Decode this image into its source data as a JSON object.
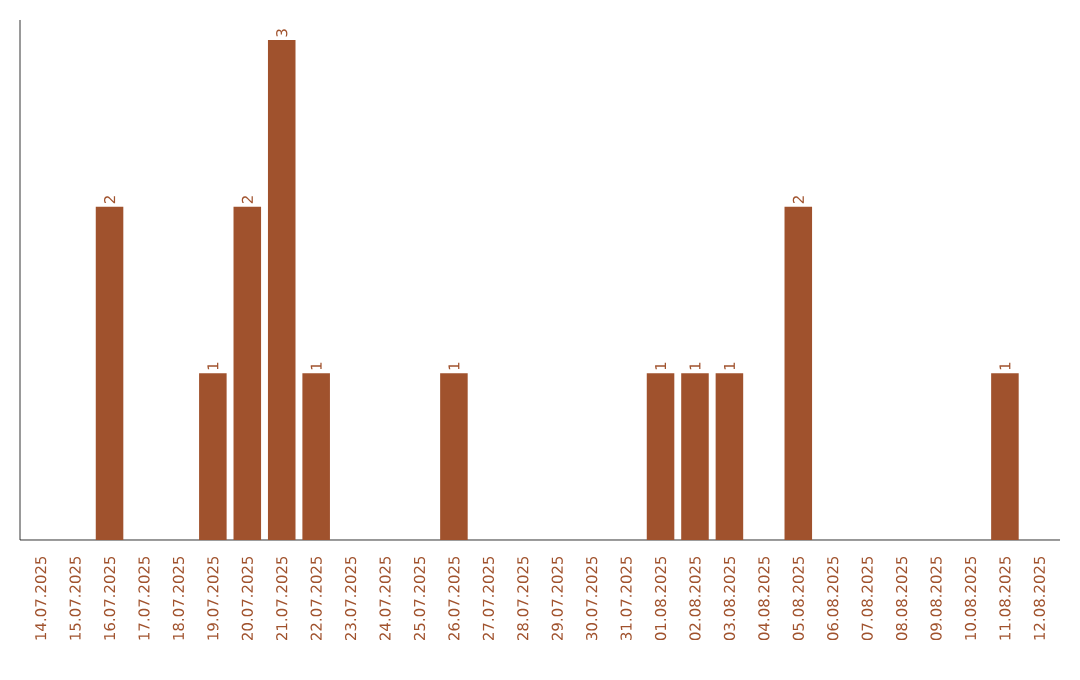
{
  "chart_data": {
    "type": "bar",
    "categories": [
      "14.07.2025",
      "15.07.2025",
      "16.07.2025",
      "17.07.2025",
      "18.07.2025",
      "19.07.2025",
      "20.07.2025",
      "21.07.2025",
      "22.07.2025",
      "23.07.2025",
      "24.07.2025",
      "25.07.2025",
      "26.07.2025",
      "27.07.2025",
      "28.07.2025",
      "29.07.2025",
      "30.07.2025",
      "31.07.2025",
      "01.08.2025",
      "02.08.2025",
      "03.08.2025",
      "04.08.2025",
      "05.08.2025",
      "06.08.2025",
      "07.08.2025",
      "08.08.2025",
      "09.08.2025",
      "10.08.2025",
      "11.08.2025",
      "12.08.2025"
    ],
    "values": [
      0,
      0,
      2,
      0,
      0,
      1,
      2,
      3,
      1,
      0,
      0,
      0,
      1,
      0,
      0,
      0,
      0,
      0,
      1,
      1,
      1,
      0,
      2,
      0,
      0,
      0,
      0,
      0,
      1,
      0
    ],
    "value_labels": [
      null,
      null,
      "2",
      null,
      null,
      "1",
      "2",
      "3",
      "1",
      null,
      null,
      null,
      "1",
      null,
      null,
      null,
      null,
      null,
      "1",
      "1",
      "1",
      null,
      "2",
      null,
      null,
      null,
      null,
      null,
      "1",
      null
    ],
    "color": "#a0522d",
    "tick_labels": "x"
  }
}
